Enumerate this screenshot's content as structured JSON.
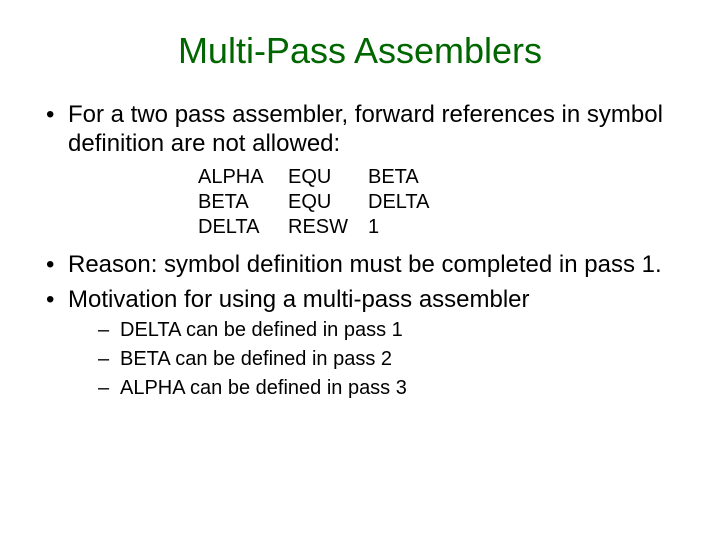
{
  "colors": {
    "title_color": "#006600",
    "body_color": "#000000",
    "background": "#ffffff"
  },
  "title": "Multi-Pass Assemblers",
  "bullets": [
    {
      "text": "For a two pass assembler, forward references in symbol definition are not allowed:"
    },
    {
      "text": "Reason: symbol definition must be completed in pass 1."
    },
    {
      "text": "Motivation for using a multi-pass assembler"
    }
  ],
  "code_table": {
    "rows": [
      {
        "label": "ALPHA",
        "op": "EQU",
        "operand": "BETA"
      },
      {
        "label": "BETA",
        "op": "EQU",
        "operand": "DELTA"
      },
      {
        "label": "DELTA",
        "op": "RESW",
        "operand": "1"
      }
    ]
  },
  "sub_bullets": [
    {
      "text": "DELTA can be defined in pass 1"
    },
    {
      "text": "BETA can be defined in pass 2"
    },
    {
      "text": "ALPHA can be defined in pass 3"
    }
  ]
}
